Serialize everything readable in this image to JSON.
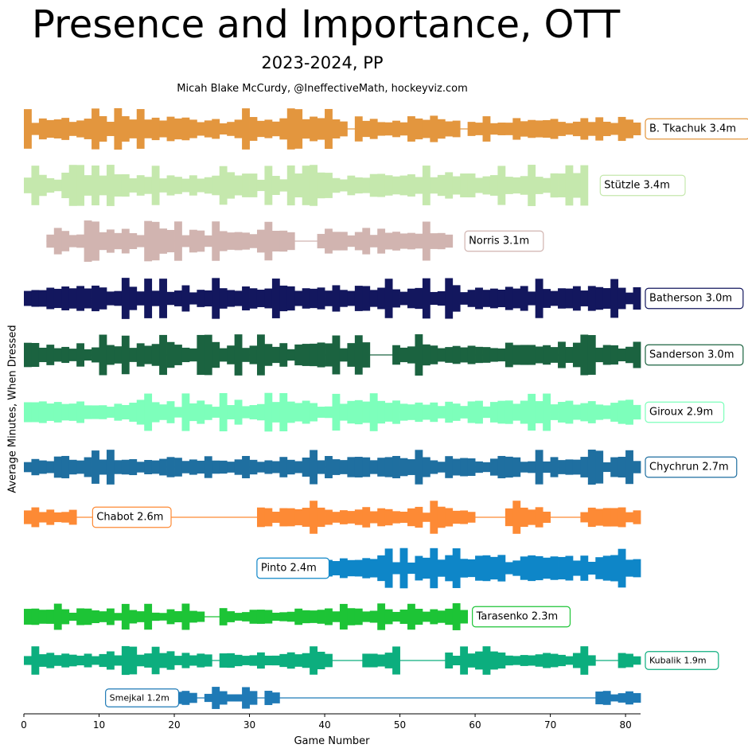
{
  "chart_data": {
    "type": "area",
    "title": "Presence and Importance, OTT",
    "subtitle": "2023-2024, PP",
    "credit": "Micah Blake McCurdy, @IneffectiveMath, hockeyviz.com",
    "xlabel": "Game Number",
    "ylabel": "Average Minutes, When Dressed",
    "xlim": [
      0,
      82
    ],
    "xticks": [
      0,
      10,
      20,
      30,
      40,
      50,
      60,
      70,
      80
    ],
    "grid": false,
    "series": [
      {
        "name": "B. Tkachuk",
        "label": "B. Tkachuk 3.4m",
        "color": "#e3963e",
        "label_at": 82,
        "games": "1-43,45-58,60-82"
      },
      {
        "name": "Stützle",
        "label": "Stützle 3.4m",
        "color": "#c5e8ad",
        "label_at": 76,
        "games": "1-75"
      },
      {
        "name": "Norris",
        "label": "Norris 3.1m",
        "color": "#d1b4b0",
        "label_at": 58,
        "games": "4-36,40-57"
      },
      {
        "name": "Batherson",
        "label": "Batherson 3.0m",
        "color": "#13175e",
        "label_at": 82,
        "games": "1-82"
      },
      {
        "name": "Sanderson",
        "label": "Sanderson 3.0m",
        "color": "#1b6340",
        "label_at": 82,
        "games": "1-46,50-82"
      },
      {
        "name": "Giroux",
        "label": "Giroux 2.9m",
        "color": "#7dffbb",
        "label_at": 82,
        "games": "1-27,28-82"
      },
      {
        "name": "Chychrun",
        "label": "Chychrun 2.7m",
        "color": "#1f6fa0",
        "label_at": 82,
        "games": "1-82"
      },
      {
        "name": "Chabot",
        "label": "Chabot 2.6m",
        "color": "#fd8a35",
        "label_at": 20,
        "games": "1-7,17-19,32-60,65-70,75-82"
      },
      {
        "name": "Pinto",
        "label": "Pinto 2.4m",
        "color": "#0e86c8",
        "label_at": 41,
        "games": "41-82"
      },
      {
        "name": "Tarasenko",
        "label": "Tarasenko 2.3m",
        "color": "#1dc436",
        "label_at": 59,
        "games": "1-24,27-59"
      },
      {
        "name": "Kubalik",
        "label": "Kubalik 1.9m",
        "color": "#0cae7e",
        "label_at": 82,
        "games": "1-25,27-41,46-50,57-76,80-82"
      },
      {
        "name": "Smejkal",
        "label": "Smejkal 1.2m",
        "color": "#1f7ab6",
        "label_at": 21,
        "games": "21-23,25-26,27-31,33-34,77-82"
      }
    ]
  }
}
